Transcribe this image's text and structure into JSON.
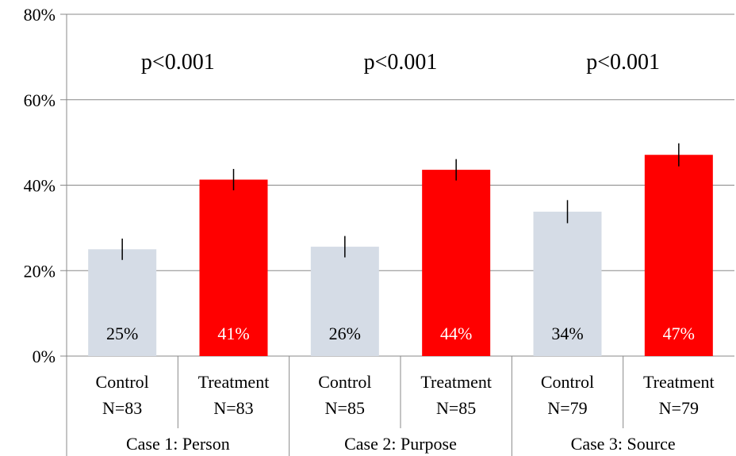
{
  "chart_data": {
    "type": "bar",
    "ylim": [
      0,
      80
    ],
    "yticks": [
      "0%",
      "20%",
      "40%",
      "60%",
      "80%"
    ],
    "grid": true,
    "colors": {
      "control": "#d5dce6",
      "treatment": "#ff0000",
      "axis": "#888888",
      "errorbar": "#000000"
    },
    "groups": [
      {
        "label": "Case 1: Person",
        "pvalue": "p<0.001",
        "bars": [
          {
            "condition": "Control",
            "n_label": "N=83",
            "value": 25,
            "error": 2.5,
            "value_label": "25%",
            "color": "#d5dce6",
            "label_color": "#000000"
          },
          {
            "condition": "Treatment",
            "n_label": "N=83",
            "value": 41.3,
            "error": 2.5,
            "value_label": "41%",
            "color": "#ff0000",
            "label_color": "#ffffff"
          }
        ]
      },
      {
        "label": "Case 2: Purpose",
        "pvalue": "p<0.001",
        "bars": [
          {
            "condition": "Control",
            "n_label": "N=85",
            "value": 25.6,
            "error": 2.5,
            "value_label": "26%",
            "color": "#d5dce6",
            "label_color": "#000000"
          },
          {
            "condition": "Treatment",
            "n_label": "N=85",
            "value": 43.6,
            "error": 2.5,
            "value_label": "44%",
            "color": "#ff0000",
            "label_color": "#ffffff"
          }
        ]
      },
      {
        "label": "Case 3: Source",
        "pvalue": "p<0.001",
        "bars": [
          {
            "condition": "Control",
            "n_label": "N=79",
            "value": 33.8,
            "error": 2.7,
            "value_label": "34%",
            "color": "#d5dce6",
            "label_color": "#000000"
          },
          {
            "condition": "Treatment",
            "n_label": "N=79",
            "value": 47.1,
            "error": 2.7,
            "value_label": "47%",
            "color": "#ff0000",
            "label_color": "#ffffff"
          }
        ]
      }
    ]
  }
}
